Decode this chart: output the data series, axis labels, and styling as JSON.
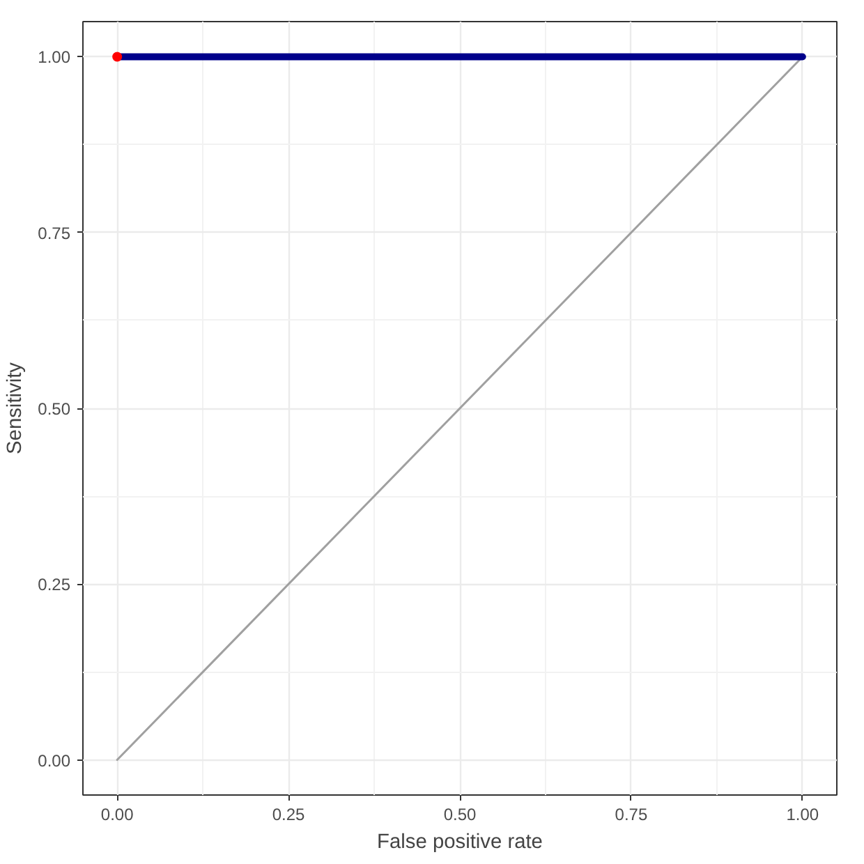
{
  "chart_data": {
    "type": "line",
    "xlabel": "False positive rate",
    "ylabel": "Sensitivity",
    "xlim": [
      -0.05,
      1.05
    ],
    "ylim": [
      -0.05,
      1.05
    ],
    "xticks": [
      {
        "value": 0,
        "label": "0.00"
      },
      {
        "value": 0.25,
        "label": "0.25"
      },
      {
        "value": 0.5,
        "label": "0.50"
      },
      {
        "value": 0.75,
        "label": "0.75"
      },
      {
        "value": 1,
        "label": "1.00"
      }
    ],
    "yticks": [
      {
        "value": 0,
        "label": "0.00"
      },
      {
        "value": 0.25,
        "label": "0.25"
      },
      {
        "value": 0.5,
        "label": "0.50"
      },
      {
        "value": 0.75,
        "label": "0.75"
      },
      {
        "value": 1,
        "label": "1.00"
      }
    ],
    "grid": true,
    "x": [
      0,
      1
    ],
    "series": [
      {
        "color": "#a0a0a0",
        "values": [
          0,
          1
        ]
      },
      {
        "color": "#00008b",
        "values": [
          1,
          1
        ]
      },
      {
        "type": "scatter",
        "color": "#ff0000",
        "x": [
          0
        ],
        "values": [
          1
        ]
      }
    ]
  }
}
